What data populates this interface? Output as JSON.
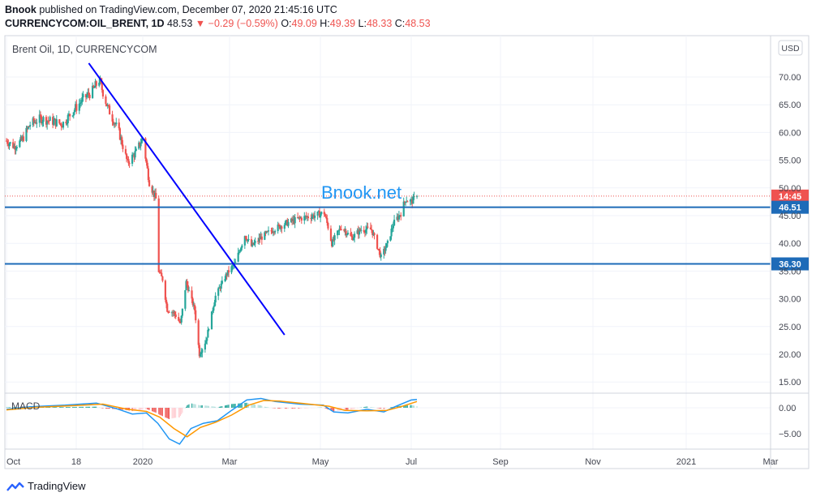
{
  "header": {
    "line1_user": "Bnook",
    "line1_text": "published on TradingView.com, December 07, 2020 21:45:16 UTC",
    "symbol": "CURRENCYCOM:OIL_BRENT, 1D",
    "last": "48.53",
    "change": "−0.29 (−0.59%)",
    "o_label": "O:",
    "o": "49.09",
    "h_label": "H:",
    "h": "49.39",
    "l_label": "L:",
    "l": "48.33",
    "c_label": "C:",
    "c": "48.53"
  },
  "chart_title": "Brent Oil, 1D, CURRENCYCOM",
  "currency_button": "USD",
  "watermark": "Bnook.net",
  "footer_brand": "TradingView",
  "colors": {
    "up": "#26a69a",
    "down": "#ef5350",
    "trendline": "#0000ff",
    "hline": "#1e6bb8",
    "macd_line": "#2196f3",
    "signal_line": "#ff9800",
    "watermark": "#2196f3"
  },
  "chart_data": [
    {
      "type": "candlestick",
      "title": "Brent Oil, 1D, CURRENCYCOM",
      "y_axis_ticks": [
        "70.00",
        "65.00",
        "60.00",
        "55.00",
        "50.00",
        "45.00",
        "40.00",
        "35.00",
        "30.00",
        "25.00",
        "20.00",
        "15.00"
      ],
      "ylim": [
        12,
        75
      ],
      "x_axis_ticks": [
        "Oct",
        "18",
        "2020",
        "Mar",
        "May",
        "Jul",
        "Sep",
        "Nov",
        "2021",
        "Mar"
      ],
      "price_labels": [
        {
          "text": "14:45",
          "value": 48.53,
          "color": "#ef5350"
        },
        {
          "text": "46.51",
          "value": 46.51,
          "color": "#1e6bb8"
        },
        {
          "text": "36.30",
          "value": 36.3,
          "color": "#1e6bb8"
        }
      ],
      "horizontal_lines": [
        46.51,
        36.3
      ],
      "last_price_line": 48.53,
      "trendline": [
        {
          "date": "2019-12-26",
          "price": 72.5
        },
        {
          "date": "2020-07-20",
          "price": 23.5
        }
      ],
      "close_path": [
        {
          "date": "2019-09-30",
          "price": 58.5
        },
        {
          "date": "2019-10-08",
          "price": 57.5
        },
        {
          "date": "2019-10-16",
          "price": 58.5
        },
        {
          "date": "2019-10-25",
          "price": 61.5
        },
        {
          "date": "2019-11-05",
          "price": 62.5
        },
        {
          "date": "2019-11-18",
          "price": 62.0
        },
        {
          "date": "2019-11-28",
          "price": 61.5
        },
        {
          "date": "2019-12-10",
          "price": 64.0
        },
        {
          "date": "2019-12-20",
          "price": 66.0
        },
        {
          "date": "2019-12-30",
          "price": 67.5
        },
        {
          "date": "2020-01-06",
          "price": 69.5
        },
        {
          "date": "2020-01-15",
          "price": 64.5
        },
        {
          "date": "2020-01-27",
          "price": 60.0
        },
        {
          "date": "2020-02-05",
          "price": 54.5
        },
        {
          "date": "2020-02-14",
          "price": 56.5
        },
        {
          "date": "2020-02-21",
          "price": 59.0
        },
        {
          "date": "2020-02-28",
          "price": 51.0
        },
        {
          "date": "2020-03-06",
          "price": 48.0
        },
        {
          "date": "2020-03-09",
          "price": 35.0
        },
        {
          "date": "2020-03-13",
          "price": 33.5
        },
        {
          "date": "2020-03-18",
          "price": 28.0
        },
        {
          "date": "2020-03-25",
          "price": 27.5
        },
        {
          "date": "2020-04-01",
          "price": 25.5
        },
        {
          "date": "2020-04-07",
          "price": 33.0
        },
        {
          "date": "2020-04-16",
          "price": 28.0
        },
        {
          "date": "2020-04-21",
          "price": 20.0
        },
        {
          "date": "2020-04-28",
          "price": 22.5
        },
        {
          "date": "2020-05-08",
          "price": 30.5
        },
        {
          "date": "2020-05-20",
          "price": 34.5
        },
        {
          "date": "2020-05-29",
          "price": 36.5
        },
        {
          "date": "2020-06-08",
          "price": 41.5
        },
        {
          "date": "2020-06-15",
          "price": 39.5
        },
        {
          "date": "2020-06-25",
          "price": 41.0
        },
        {
          "date": "2020-07-08",
          "price": 42.5
        },
        {
          "date": "2020-07-20",
          "price": 43.5
        },
        {
          "date": "2020-08-05",
          "price": 44.5
        },
        {
          "date": "2020-08-20",
          "price": 45.0
        },
        {
          "date": "2020-08-31",
          "price": 45.5
        },
        {
          "date": "2020-09-04",
          "price": 43.0
        },
        {
          "date": "2020-09-08",
          "price": 40.0
        },
        {
          "date": "2020-09-18",
          "price": 43.0
        },
        {
          "date": "2020-09-29",
          "price": 41.0
        },
        {
          "date": "2020-10-09",
          "price": 42.5
        },
        {
          "date": "2020-10-20",
          "price": 42.5
        },
        {
          "date": "2020-10-30",
          "price": 37.5
        },
        {
          "date": "2020-11-06",
          "price": 40.0
        },
        {
          "date": "2020-11-12",
          "price": 43.5
        },
        {
          "date": "2020-11-20",
          "price": 45.5
        },
        {
          "date": "2020-11-25",
          "price": 48.0
        },
        {
          "date": "2020-12-01",
          "price": 47.5
        },
        {
          "date": "2020-12-07",
          "price": 48.53
        }
      ]
    },
    {
      "type": "line",
      "title": "MACD",
      "y_axis_ticks": [
        "0.00",
        "−5.00"
      ],
      "ylim": [
        -7.5,
        2.5
      ],
      "series": [
        {
          "name": "MACD",
          "values": [
            {
              "date": "2019-09-30",
              "v": -0.3
            },
            {
              "date": "2019-10-25",
              "v": 0.2
            },
            {
              "date": "2019-12-01",
              "v": 0.5
            },
            {
              "date": "2020-01-03",
              "v": 0.9
            },
            {
              "date": "2020-01-25",
              "v": -0.2
            },
            {
              "date": "2020-02-10",
              "v": -1.2
            },
            {
              "date": "2020-02-25",
              "v": -1.0
            },
            {
              "date": "2020-03-08",
              "v": -3.0
            },
            {
              "date": "2020-03-20",
              "v": -6.0
            },
            {
              "date": "2020-03-31",
              "v": -7.0
            },
            {
              "date": "2020-04-12",
              "v": -4.0
            },
            {
              "date": "2020-04-25",
              "v": -3.0
            },
            {
              "date": "2020-05-10",
              "v": -2.5
            },
            {
              "date": "2020-05-25",
              "v": -0.5
            },
            {
              "date": "2020-06-10",
              "v": 1.5
            },
            {
              "date": "2020-06-25",
              "v": 1.8
            },
            {
              "date": "2020-07-10",
              "v": 1.2
            },
            {
              "date": "2020-08-05",
              "v": 0.7
            },
            {
              "date": "2020-08-30",
              "v": 0.5
            },
            {
              "date": "2020-09-10",
              "v": -0.8
            },
            {
              "date": "2020-09-25",
              "v": -1.0
            },
            {
              "date": "2020-10-15",
              "v": -0.3
            },
            {
              "date": "2020-11-02",
              "v": -0.8
            },
            {
              "date": "2020-11-15",
              "v": 0.3
            },
            {
              "date": "2020-12-01",
              "v": 1.5
            },
            {
              "date": "2020-12-07",
              "v": 1.6
            }
          ]
        },
        {
          "name": "Signal",
          "values": [
            {
              "date": "2019-09-30",
              "v": -0.4
            },
            {
              "date": "2019-11-01",
              "v": 0.1
            },
            {
              "date": "2019-12-10",
              "v": 0.4
            },
            {
              "date": "2020-01-10",
              "v": 0.7
            },
            {
              "date": "2020-02-05",
              "v": -0.3
            },
            {
              "date": "2020-02-25",
              "v": -0.7
            },
            {
              "date": "2020-03-10",
              "v": -1.8
            },
            {
              "date": "2020-03-25",
              "v": -4.0
            },
            {
              "date": "2020-04-08",
              "v": -5.6
            },
            {
              "date": "2020-04-22",
              "v": -3.8
            },
            {
              "date": "2020-05-08",
              "v": -2.8
            },
            {
              "date": "2020-05-25",
              "v": -1.4
            },
            {
              "date": "2020-06-12",
              "v": 0.5
            },
            {
              "date": "2020-06-28",
              "v": 1.4
            },
            {
              "date": "2020-07-15",
              "v": 1.3
            },
            {
              "date": "2020-08-10",
              "v": 0.8
            },
            {
              "date": "2020-09-05",
              "v": 0.3
            },
            {
              "date": "2020-09-22",
              "v": -0.5
            },
            {
              "date": "2020-10-15",
              "v": -0.6
            },
            {
              "date": "2020-11-05",
              "v": -0.5
            },
            {
              "date": "2020-11-20",
              "v": 0.2
            },
            {
              "date": "2020-12-07",
              "v": 1.2
            }
          ]
        }
      ]
    }
  ]
}
